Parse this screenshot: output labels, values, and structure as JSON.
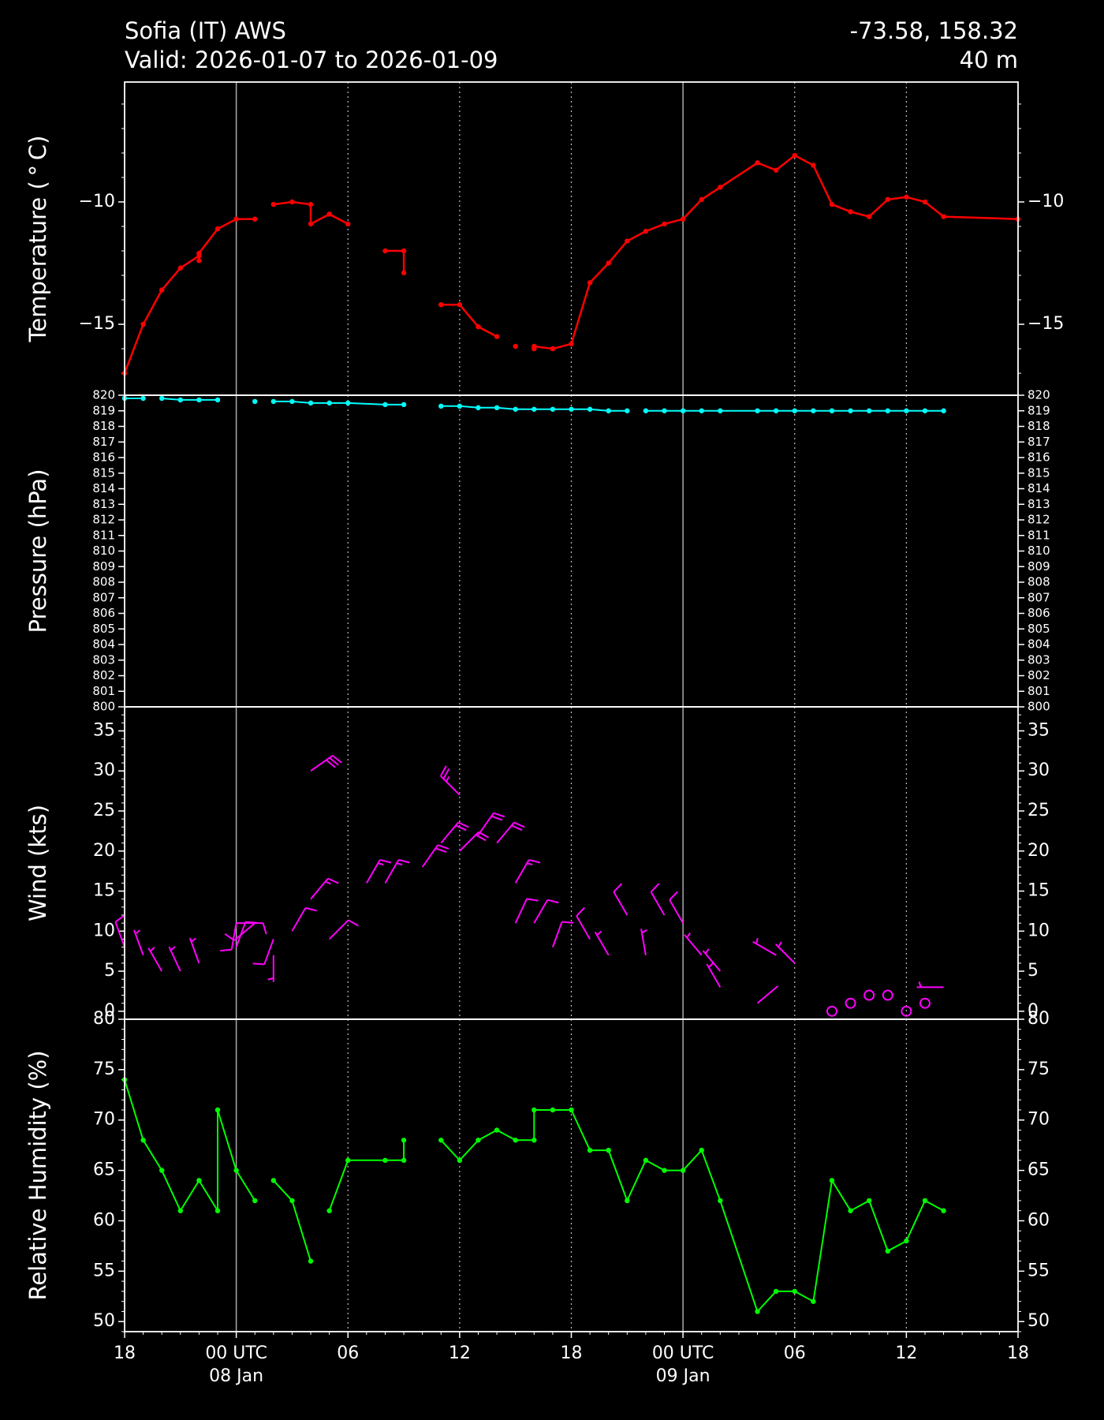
{
  "header": {
    "station": "Sofia (IT) AWS",
    "valid": "Valid: 2026-01-07 to 2026-01-09",
    "coords": "-73.58, 158.32",
    "elevation": "40 m"
  },
  "colors": {
    "background": "#000000",
    "temperature": "#ff0000",
    "pressure": "#00ffff",
    "wind": "#ff00ff",
    "humidity": "#00ff00",
    "axis": "#ffffff",
    "grid_day": "#aaaaaa",
    "grid_6h": "#bbbbbb"
  },
  "x_axis": {
    "unit": "hours since 2026-01-07 18 UTC",
    "range": [
      0,
      48
    ],
    "ticks": [
      {
        "x": 0,
        "label": "18",
        "sub": ""
      },
      {
        "x": 6,
        "label": "00 UTC",
        "sub": "08 Jan"
      },
      {
        "x": 12,
        "label": "06",
        "sub": ""
      },
      {
        "x": 18,
        "label": "12",
        "sub": ""
      },
      {
        "x": 24,
        "label": "18",
        "sub": ""
      },
      {
        "x": 30,
        "label": "00 UTC",
        "sub": "09 Jan"
      },
      {
        "x": 36,
        "label": "06",
        "sub": ""
      },
      {
        "x": 42,
        "label": "12",
        "sub": ""
      },
      {
        "x": 48,
        "label": "18",
        "sub": ""
      }
    ],
    "day_lines": [
      6,
      30
    ],
    "six_hour_lines": [
      12,
      18,
      24,
      36,
      42
    ]
  },
  "chart_data": [
    {
      "type": "line",
      "name": "temperature",
      "ylabel": "Temperature ($^\\circ$C)",
      "ylim": [
        -17.9,
        -5.1
      ],
      "yticks": [
        -15,
        -10
      ],
      "segments": [
        [
          [
            0,
            -17.0
          ],
          [
            1,
            -15.0
          ],
          [
            2,
            -13.6
          ],
          [
            3,
            -12.7
          ],
          [
            4,
            -12.2
          ],
          [
            4,
            -12.4
          ],
          [
            4,
            -12.1
          ],
          [
            5,
            -11.1
          ],
          [
            6,
            -10.7
          ],
          [
            7,
            -10.7
          ]
        ],
        [
          [
            8,
            -10.1
          ],
          [
            9,
            -10.0
          ],
          [
            10,
            -10.1
          ],
          [
            10,
            -10.9
          ],
          [
            11,
            -10.5
          ],
          [
            12,
            -10.9
          ]
        ],
        [
          [
            14,
            -12.0
          ],
          [
            15,
            -12.0
          ],
          [
            15,
            -12.9
          ]
        ],
        [
          [
            17,
            -14.2
          ],
          [
            18,
            -14.2
          ],
          [
            19,
            -15.1
          ],
          [
            20,
            -15.5
          ]
        ],
        [
          [
            21,
            -15.9
          ]
        ],
        [
          [
            22,
            -16.0
          ],
          [
            22,
            -15.9
          ],
          [
            23,
            -16.0
          ],
          [
            24,
            -15.8
          ],
          [
            25,
            -13.3
          ],
          [
            26,
            -12.5
          ],
          [
            27,
            -11.6
          ],
          [
            28,
            -11.2
          ],
          [
            29,
            -10.9
          ],
          [
            30,
            -10.7
          ],
          [
            31,
            -9.9
          ],
          [
            32,
            -9.4
          ],
          [
            34,
            -8.4
          ],
          [
            35,
            -8.7
          ],
          [
            36,
            -8.1
          ],
          [
            37,
            -8.5
          ],
          [
            38,
            -10.1
          ],
          [
            39,
            -10.4
          ],
          [
            40,
            -10.6
          ],
          [
            41,
            -9.9
          ],
          [
            42,
            -9.8
          ],
          [
            43,
            -10.0
          ],
          [
            44,
            -10.6
          ],
          [
            48,
            -10.7
          ]
        ]
      ]
    },
    {
      "type": "line",
      "name": "pressure",
      "ylabel": "Pressure (hPa)",
      "ylim": [
        800,
        820
      ],
      "yticks": [
        800,
        801,
        802,
        803,
        804,
        805,
        806,
        807,
        808,
        809,
        810,
        811,
        812,
        813,
        814,
        815,
        816,
        817,
        818,
        819,
        820
      ],
      "yticklabels": [
        "800",
        "801",
        "802",
        "803",
        "804",
        "805",
        "806",
        "807",
        "808",
        "809",
        "810",
        "811",
        "812",
        "813",
        "814",
        "815",
        "816",
        "817",
        "818",
        "819",
        "820"
      ],
      "segments": [
        [
          [
            0,
            819.8
          ],
          [
            1,
            819.8
          ]
        ],
        [
          [
            2,
            819.8
          ],
          [
            3,
            819.7
          ],
          [
            4,
            819.7
          ],
          [
            5,
            819.7
          ]
        ],
        [
          [
            7,
            819.6
          ]
        ],
        [
          [
            8,
            819.6
          ],
          [
            9,
            819.6
          ],
          [
            10,
            819.5
          ],
          [
            11,
            819.5
          ],
          [
            12,
            819.5
          ],
          [
            14,
            819.4
          ],
          [
            15,
            819.4
          ]
        ],
        [
          [
            17,
            819.3
          ],
          [
            18,
            819.3
          ],
          [
            19,
            819.2
          ],
          [
            20,
            819.2
          ],
          [
            21,
            819.1
          ],
          [
            22,
            819.1
          ],
          [
            23,
            819.1
          ],
          [
            24,
            819.1
          ],
          [
            25,
            819.1
          ],
          [
            26,
            819.0
          ],
          [
            27,
            819.0
          ]
        ],
        [
          [
            28,
            819.0
          ],
          [
            29,
            819.0
          ],
          [
            30,
            819.0
          ],
          [
            31,
            819.0
          ],
          [
            32,
            819.0
          ],
          [
            34,
            819.0
          ],
          [
            35,
            819.0
          ],
          [
            36,
            819.0
          ],
          [
            37,
            819.0
          ],
          [
            38,
            819.0
          ],
          [
            39,
            819.0
          ],
          [
            40,
            819.0
          ],
          [
            41,
            819.0
          ],
          [
            42,
            819.0
          ],
          [
            43,
            819.0
          ],
          [
            44,
            819.0
          ]
        ]
      ]
    },
    {
      "type": "scatter",
      "name": "wind",
      "ylabel": "Wind (kts)",
      "ylim": [
        -1,
        38
      ],
      "yticks": [
        0,
        5,
        10,
        15,
        20,
        25,
        30,
        35
      ],
      "barbs": [
        {
          "x": 0,
          "y": 8,
          "dir": 340
        },
        {
          "x": 1,
          "y": 7,
          "dir": 340
        },
        {
          "x": 2,
          "y": 5,
          "dir": 330
        },
        {
          "x": 3,
          "y": 5,
          "dir": 335
        },
        {
          "x": 4,
          "y": 6,
          "dir": 340
        },
        {
          "x": 6,
          "y": 8,
          "dir": 20
        },
        {
          "x": 6,
          "y": 11,
          "dir": 190
        },
        {
          "x": 6,
          "y": 11,
          "dir": 90
        },
        {
          "x": 7,
          "y": 11,
          "dir": 230
        },
        {
          "x": 8,
          "y": 7,
          "dir": 180
        },
        {
          "x": 8,
          "y": 9,
          "dir": 200
        },
        {
          "x": 9,
          "y": 10,
          "dir": 30
        },
        {
          "x": 10,
          "y": 14,
          "dir": 40
        },
        {
          "x": 10,
          "y": 30,
          "dir": 55
        },
        {
          "x": 11,
          "y": 9,
          "dir": 45
        },
        {
          "x": 13,
          "y": 16,
          "dir": 30
        },
        {
          "x": 14,
          "y": 16,
          "dir": 30
        },
        {
          "x": 16,
          "y": 18,
          "dir": 35
        },
        {
          "x": 17,
          "y": 21,
          "dir": 40
        },
        {
          "x": 18,
          "y": 20,
          "dir": 45
        },
        {
          "x": 18,
          "y": 27,
          "dir": 315
        },
        {
          "x": 19,
          "y": 22,
          "dir": 35
        },
        {
          "x": 20,
          "y": 21,
          "dir": 40
        },
        {
          "x": 21,
          "y": 16,
          "dir": 30
        },
        {
          "x": 21,
          "y": 11,
          "dir": 25
        },
        {
          "x": 22,
          "y": 11,
          "dir": 30
        },
        {
          "x": 23,
          "y": 8,
          "dir": 20
        },
        {
          "x": 25,
          "y": 9,
          "dir": 330
        },
        {
          "x": 26,
          "y": 7,
          "dir": 330
        },
        {
          "x": 27,
          "y": 12,
          "dir": 330
        },
        {
          "x": 28,
          "y": 7,
          "dir": 350
        },
        {
          "x": 29,
          "y": 12,
          "dir": 330
        },
        {
          "x": 30,
          "y": 11,
          "dir": 330
        },
        {
          "x": 31,
          "y": 7,
          "dir": 320
        },
        {
          "x": 32,
          "y": 5,
          "dir": 320
        },
        {
          "x": 32,
          "y": 3,
          "dir": 330
        },
        {
          "x": 34,
          "y": 1,
          "dir": 50
        },
        {
          "x": 35,
          "y": 7,
          "dir": 300
        },
        {
          "x": 36,
          "y": 6,
          "dir": 315
        },
        {
          "x": 38,
          "y": 0,
          "dir": 0
        },
        {
          "x": 39,
          "y": 1,
          "dir": 0
        },
        {
          "x": 40,
          "y": 2,
          "dir": 0
        },
        {
          "x": 41,
          "y": 2,
          "dir": 0
        },
        {
          "x": 42,
          "y": 0,
          "dir": 0
        },
        {
          "x": 43,
          "y": 1,
          "dir": 0
        },
        {
          "x": 44,
          "y": 3,
          "dir": 270
        }
      ]
    },
    {
      "type": "line",
      "name": "humidity",
      "ylabel": "Relative Humidity (%)",
      "ylim": [
        49,
        80
      ],
      "yticks": [
        50,
        55,
        60,
        65,
        70,
        75,
        80
      ],
      "segments": [
        [
          [
            0,
            74
          ],
          [
            1,
            68
          ],
          [
            2,
            65
          ],
          [
            3,
            61
          ],
          [
            4,
            64
          ],
          [
            5,
            61
          ],
          [
            5,
            71
          ],
          [
            6,
            65
          ],
          [
            7,
            62
          ]
        ],
        [
          [
            8,
            64
          ],
          [
            9,
            62
          ],
          [
            10,
            56
          ]
        ],
        [
          [
            11,
            61
          ],
          [
            12,
            66
          ],
          [
            14,
            66
          ],
          [
            15,
            66
          ],
          [
            15,
            68
          ]
        ],
        [
          [
            17,
            68
          ],
          [
            18,
            66
          ],
          [
            19,
            68
          ],
          [
            20,
            69
          ],
          [
            21,
            68
          ],
          [
            22,
            68
          ],
          [
            22,
            71
          ],
          [
            23,
            71
          ],
          [
            24,
            71
          ],
          [
            25,
            67
          ],
          [
            26,
            67
          ],
          [
            27,
            62
          ],
          [
            28,
            66
          ],
          [
            29,
            65
          ],
          [
            30,
            65
          ],
          [
            31,
            67
          ],
          [
            32,
            62
          ],
          [
            34,
            51
          ],
          [
            35,
            53
          ],
          [
            36,
            53
          ],
          [
            37,
            52
          ],
          [
            38,
            64
          ],
          [
            39,
            61
          ],
          [
            40,
            62
          ],
          [
            41,
            57
          ],
          [
            42,
            58
          ],
          [
            43,
            62
          ],
          [
            44,
            61
          ]
        ]
      ]
    }
  ]
}
